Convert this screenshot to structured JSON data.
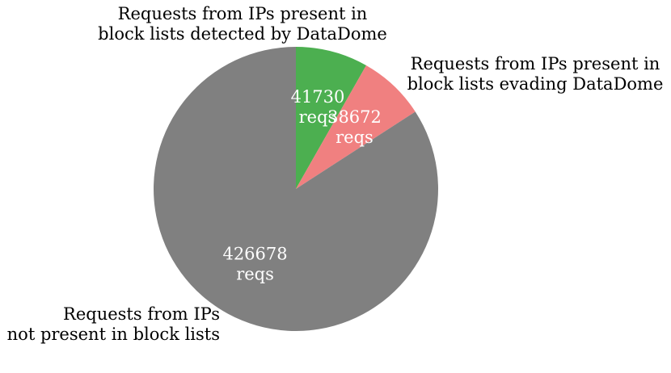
{
  "chart_data": {
    "type": "pie",
    "title": "",
    "start_angle_deg": 0,
    "direction": "clockwise",
    "slices": [
      {
        "name": "Requests from IPs present in block lists detected by DataDome",
        "label_lines": [
          "Requests from IPs present in",
          "block lists detected by DataDome"
        ],
        "value": 41730,
        "value_label_lines": [
          "41730",
          "reqs"
        ],
        "color": "#4caf50"
      },
      {
        "name": "Requests from IPs present in block lists evading DataDome",
        "label_lines": [
          "Requests from IPs present in",
          "block lists evading DataDome"
        ],
        "value": 38672,
        "value_label_lines": [
          "38672",
          "reqs"
        ],
        "color": "#f08080"
      },
      {
        "name": "Requests from IPs not present in block lists",
        "label_lines": [
          "Requests from IPs",
          "not present in block lists"
        ],
        "value": 426678,
        "value_label_lines": [
          "426678",
          "reqs"
        ],
        "color": "#808080"
      }
    ],
    "legend": "none",
    "value_label_color": "#ffffff"
  }
}
